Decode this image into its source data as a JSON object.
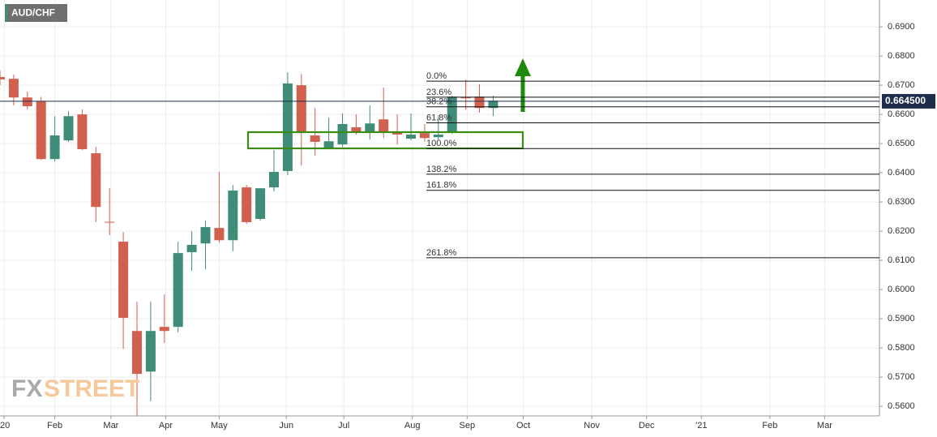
{
  "chart_data": {
    "type": "candlestick",
    "title": "AUD/CHF",
    "watermark": [
      "FX",
      "STREET"
    ],
    "x": [
      0,
      1,
      2,
      3,
      4,
      5,
      6,
      7,
      8,
      9,
      10,
      11,
      12,
      13,
      14,
      15,
      16,
      17,
      18,
      19,
      20,
      21,
      22,
      23,
      24,
      25,
      26,
      27,
      28,
      29,
      30,
      31,
      32,
      33,
      34,
      35,
      36
    ],
    "open": [
      0.6728,
      0.6722,
      0.6658,
      0.6644,
      0.6447,
      0.6511,
      0.66,
      0.6467,
      0.6232,
      0.6164,
      0.5858,
      0.5719,
      0.5872,
      0.5872,
      0.6128,
      0.6158,
      0.6211,
      0.6169,
      0.635,
      0.6242,
      0.635,
      0.6406,
      0.67,
      0.6528,
      0.6486,
      0.6497,
      0.6556,
      0.6539,
      0.6583,
      0.6542,
      0.6517,
      0.6536,
      0.6522,
      0.6539,
      0.6658,
      0.6661,
      0.6622
    ],
    "high": [
      0.675,
      0.6736,
      0.6678,
      0.666,
      0.6594,
      0.6611,
      0.6617,
      0.6489,
      0.6347,
      0.6197,
      0.5958,
      0.5958,
      0.5983,
      0.6164,
      0.62,
      0.6236,
      0.6403,
      0.6358,
      0.6358,
      0.6347,
      0.6478,
      0.6744,
      0.6739,
      0.6622,
      0.6589,
      0.6603,
      0.66,
      0.6631,
      0.6692,
      0.66,
      0.6603,
      0.6567,
      0.6597,
      0.6664,
      0.6719,
      0.6703,
      0.6664
    ],
    "low": [
      0.67,
      0.6631,
      0.6617,
      0.6444,
      0.6439,
      0.6506,
      0.6478,
      0.6231,
      0.6186,
      0.5797,
      0.5567,
      0.5617,
      0.5817,
      0.5853,
      0.6064,
      0.6069,
      0.6161,
      0.6131,
      0.6225,
      0.6236,
      0.6336,
      0.6392,
      0.6425,
      0.6458,
      0.6481,
      0.6489,
      0.6531,
      0.6514,
      0.6519,
      0.6497,
      0.6511,
      0.6506,
      0.6511,
      0.6533,
      0.6617,
      0.6606,
      0.6594
    ],
    "close": [
      0.672,
      0.6658,
      0.6628,
      0.6447,
      0.6528,
      0.6594,
      0.6481,
      0.6283,
      0.6231,
      0.5903,
      0.5711,
      0.5858,
      0.5858,
      0.6125,
      0.6153,
      0.6214,
      0.6169,
      0.6339,
      0.6231,
      0.6347,
      0.6403,
      0.6706,
      0.6542,
      0.6506,
      0.6508,
      0.6567,
      0.6539,
      0.6569,
      0.6539,
      0.6531,
      0.6531,
      0.6519,
      0.6531,
      0.6661,
      0.6656,
      0.6622,
      0.6647
    ],
    "up_color": "#3f8c78",
    "down_color": "#d2604f",
    "xlim": [
      0,
      64.2
    ],
    "ylim": [
      0.5567,
      0.6992
    ],
    "xticks": [
      {
        "value": 0.3,
        "label": "'20"
      },
      {
        "value": 4.0,
        "label": "Feb"
      },
      {
        "value": 8.1,
        "label": "Mar"
      },
      {
        "value": 12.1,
        "label": "Apr"
      },
      {
        "value": 16.0,
        "label": "May"
      },
      {
        "value": 20.9,
        "label": "Jun"
      },
      {
        "value": 25.1,
        "label": "Jul"
      },
      {
        "value": 30.1,
        "label": "Aug"
      },
      {
        "value": 34.1,
        "label": "Sep"
      },
      {
        "value": 38.2,
        "label": "Oct"
      },
      {
        "value": 43.2,
        "label": "Nov"
      },
      {
        "value": 47.2,
        "label": "Dec"
      },
      {
        "value": 51.2,
        "label": "'21"
      },
      {
        "value": 56.2,
        "label": "Feb"
      },
      {
        "value": 60.2,
        "label": "Mar"
      }
    ],
    "yticks": [
      {
        "value": 0.69,
        "label": "0.6900"
      },
      {
        "value": 0.68,
        "label": "0.6800"
      },
      {
        "value": 0.67,
        "label": "0.6700"
      },
      {
        "value": 0.66,
        "label": "0.6600"
      },
      {
        "value": 0.65,
        "label": "0.6500"
      },
      {
        "value": 0.64,
        "label": "0.6400"
      },
      {
        "value": 0.63,
        "label": "0.6300"
      },
      {
        "value": 0.62,
        "label": "0.6200"
      },
      {
        "value": 0.61,
        "label": "0.6100"
      },
      {
        "value": 0.6,
        "label": "0.6000"
      },
      {
        "value": 0.59,
        "label": "0.5900"
      },
      {
        "value": 0.58,
        "label": "0.5800"
      },
      {
        "value": 0.57,
        "label": "0.5700"
      },
      {
        "value": 0.56,
        "label": "0.5600"
      }
    ],
    "grid": true,
    "fib_levels": [
      {
        "value": 0.6714,
        "label": "0.0%"
      },
      {
        "value": 0.6659,
        "label": "23.6%"
      },
      {
        "value": 0.6626,
        "label": "38.2%"
      },
      {
        "value": 0.6571,
        "label": "61.8%"
      },
      {
        "value": 0.6483,
        "label": "100.0%"
      },
      {
        "value": 0.6395,
        "label": "138.2%"
      },
      {
        "value": 0.634,
        "label": "161.8%"
      },
      {
        "value": 0.6109,
        "label": "261.8%"
      }
    ],
    "last_price": 0.6645,
    "last_price_label": "0.664500"
  }
}
